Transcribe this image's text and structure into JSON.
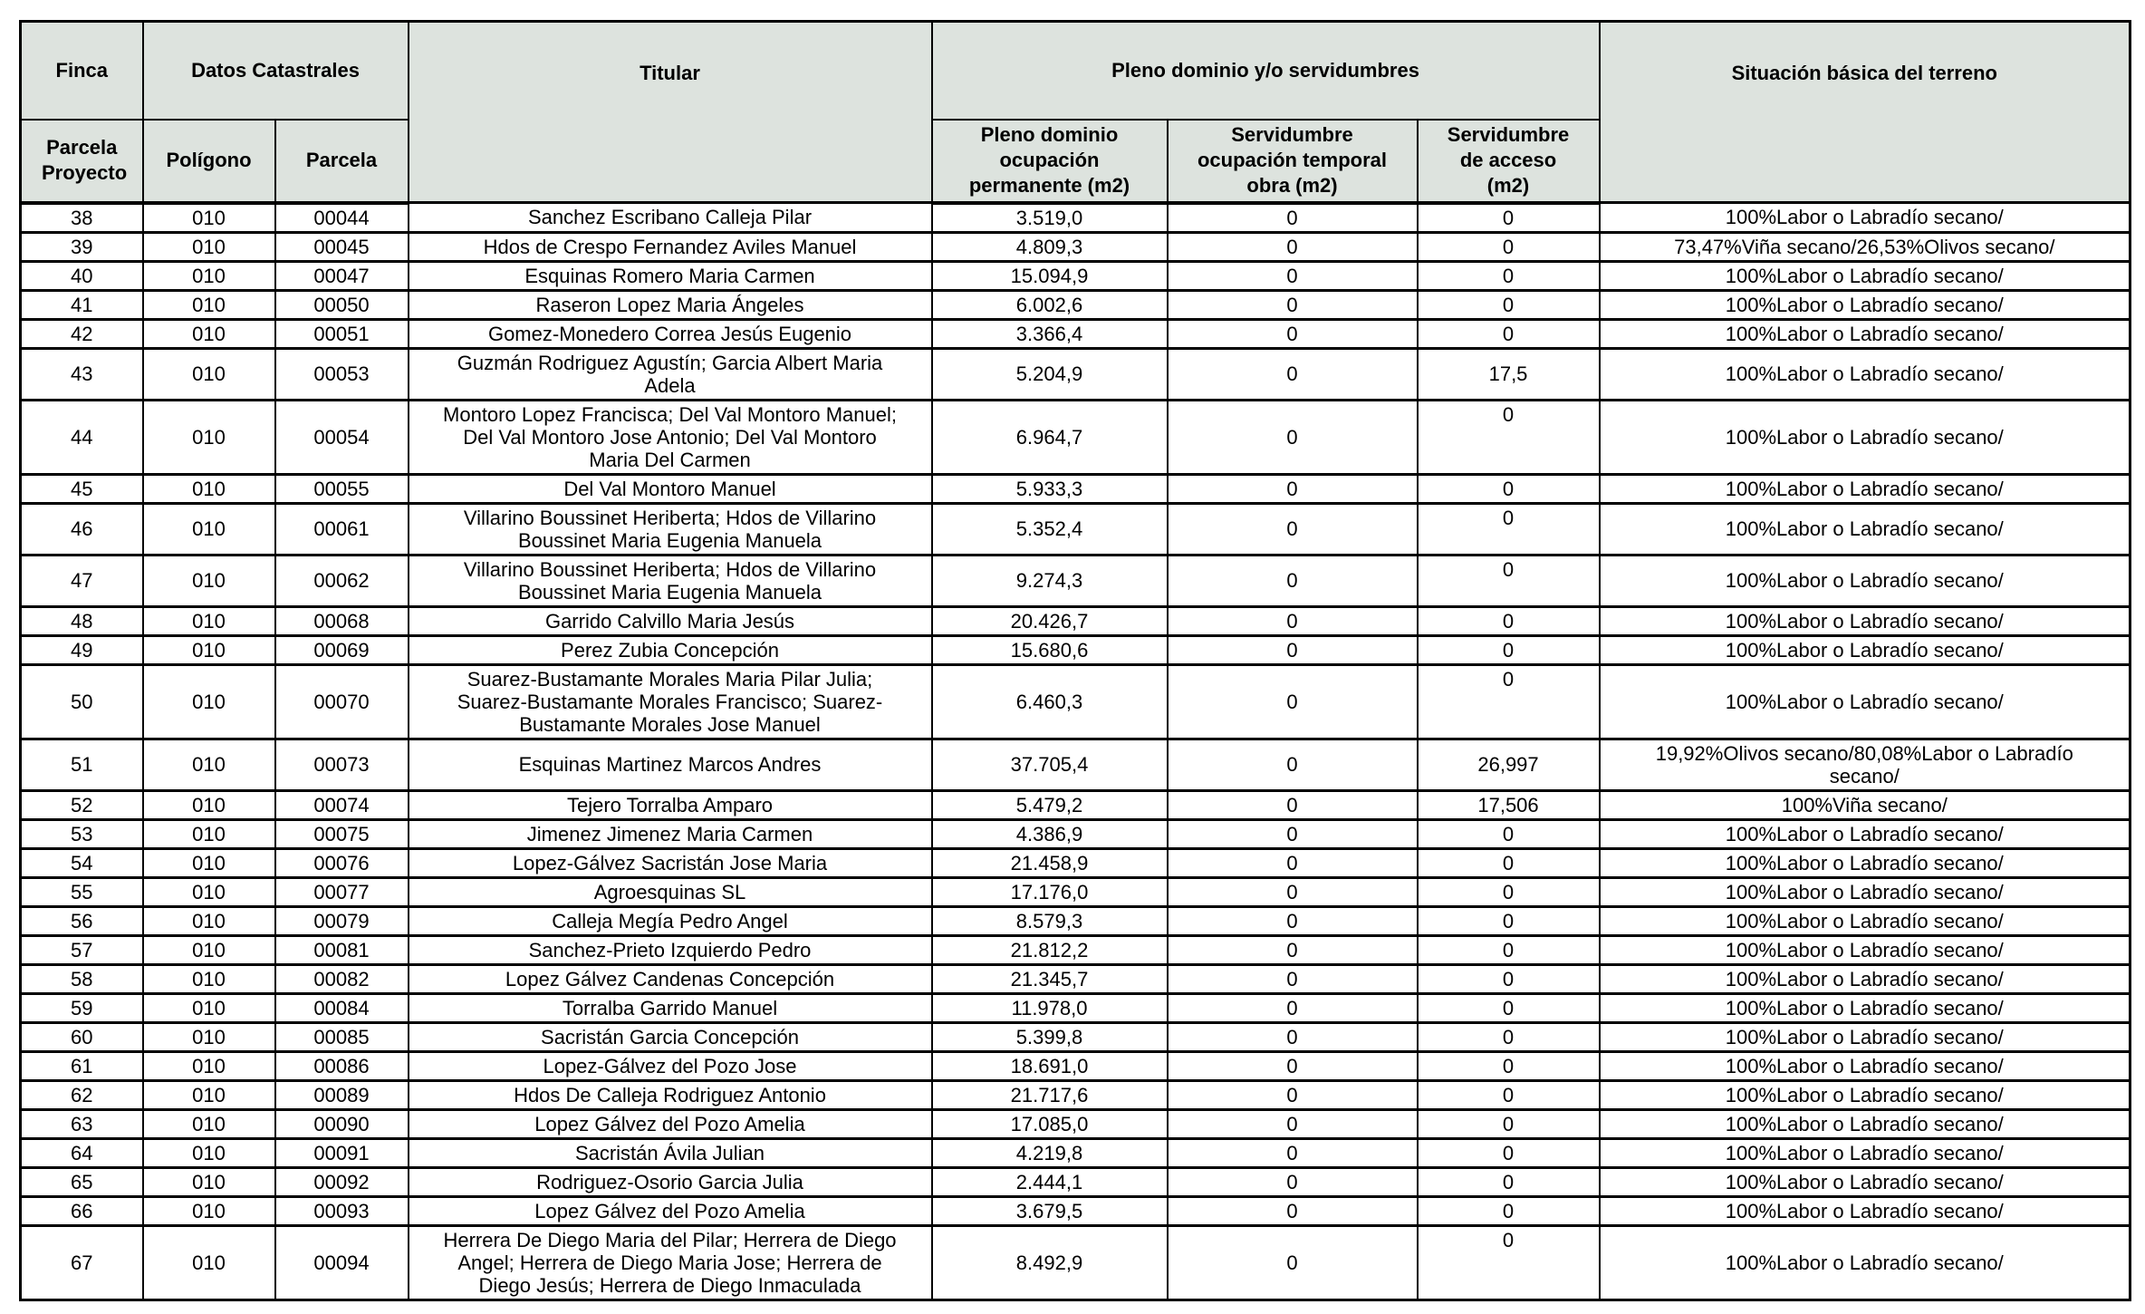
{
  "colors": {
    "header_bg": "#dde3de",
    "border": "#000000"
  },
  "header": {
    "finca": "Finca",
    "parcela_proyecto": "Parcela Proyecto",
    "datos_catastrales": "Datos Catastrales",
    "poligono": "Polígono",
    "parcela": "Parcela",
    "titular": "Titular",
    "pleno_dominio_grupo": "Pleno dominio y/o servidumbres",
    "pleno_dominio": "Pleno dominio ocupación permanente (m2)",
    "serv_temporal": "Servidumbre ocupación temporal obra (m2)",
    "serv_acceso": "Servidumbre de acceso (m2)",
    "situacion": "Situación básica del terreno"
  },
  "rows": [
    {
      "parcela_proyecto": "38",
      "poligono": "010",
      "parcela": "00044",
      "titular": "Sanchez Escribano Calleja Pilar",
      "pleno_dominio": "3.519,0",
      "serv_temporal": "0",
      "serv_acceso": "0",
      "situacion": "100%Labor o Labradío secano/"
    },
    {
      "parcela_proyecto": "39",
      "poligono": "010",
      "parcela": "00045",
      "titular": "Hdos de Crespo Fernandez Aviles Manuel",
      "pleno_dominio": "4.809,3",
      "serv_temporal": "0",
      "serv_acceso": "0",
      "situacion": "73,47%Viña secano/26,53%Olivos secano/"
    },
    {
      "parcela_proyecto": "40",
      "poligono": "010",
      "parcela": "00047",
      "titular": "Esquinas Romero Maria Carmen",
      "pleno_dominio": "15.094,9",
      "serv_temporal": "0",
      "serv_acceso": "0",
      "situacion": "100%Labor o Labradío secano/"
    },
    {
      "parcela_proyecto": "41",
      "poligono": "010",
      "parcela": "00050",
      "titular": "Raseron Lopez Maria Ángeles",
      "pleno_dominio": "6.002,6",
      "serv_temporal": "0",
      "serv_acceso": "0",
      "situacion": "100%Labor o Labradío secano/"
    },
    {
      "parcela_proyecto": "42",
      "poligono": "010",
      "parcela": "00051",
      "titular": "Gomez-Monedero Correa Jesús Eugenio",
      "pleno_dominio": "3.366,4",
      "serv_temporal": "0",
      "serv_acceso": "0",
      "situacion": "100%Labor o Labradío secano/"
    },
    {
      "parcela_proyecto": "43",
      "poligono": "010",
      "parcela": "00053",
      "titular": "Guzmán Rodriguez Agustín; Garcia Albert Maria Adela",
      "pleno_dominio": "5.204,9",
      "serv_temporal": "0",
      "serv_acceso": "17,5",
      "situacion": "100%Labor o Labradío secano/"
    },
    {
      "parcela_proyecto": "44",
      "poligono": "010",
      "parcela": "00054",
      "titular": "Montoro Lopez Francisca; Del Val Montoro Manuel; Del Val Montoro Jose Antonio; Del Val Montoro Maria Del Carmen",
      "pleno_dominio": "6.964,7",
      "serv_temporal": "0",
      "serv_acceso": "0",
      "situacion": "100%Labor o Labradío secano/"
    },
    {
      "parcela_proyecto": "45",
      "poligono": "010",
      "parcela": "00055",
      "titular": "Del Val Montoro Manuel",
      "pleno_dominio": "5.933,3",
      "serv_temporal": "0",
      "serv_acceso": "0",
      "situacion": "100%Labor o Labradío secano/"
    },
    {
      "parcela_proyecto": "46",
      "poligono": "010",
      "parcela": "00061",
      "titular": "Villarino Boussinet Heriberta; Hdos de Villarino Boussinet Maria Eugenia Manuela",
      "pleno_dominio": "5.352,4",
      "serv_temporal": "0",
      "serv_acceso": "0",
      "situacion": "100%Labor o Labradío secano/"
    },
    {
      "parcela_proyecto": "47",
      "poligono": "010",
      "parcela": "00062",
      "titular": "Villarino Boussinet Heriberta; Hdos de Villarino Boussinet Maria Eugenia Manuela",
      "pleno_dominio": "9.274,3",
      "serv_temporal": "0",
      "serv_acceso": "0",
      "situacion": "100%Labor o Labradío secano/"
    },
    {
      "parcela_proyecto": "48",
      "poligono": "010",
      "parcela": "00068",
      "titular": "Garrido Calvillo Maria Jesús",
      "pleno_dominio": "20.426,7",
      "serv_temporal": "0",
      "serv_acceso": "0",
      "situacion": "100%Labor o Labradío secano/"
    },
    {
      "parcela_proyecto": "49",
      "poligono": "010",
      "parcela": "00069",
      "titular": "Perez Zubia Concepción",
      "pleno_dominio": "15.680,6",
      "serv_temporal": "0",
      "serv_acceso": "0",
      "situacion": "100%Labor o Labradío secano/"
    },
    {
      "parcela_proyecto": "50",
      "poligono": "010",
      "parcela": "00070",
      "titular": "Suarez-Bustamante Morales Maria Pilar Julia; Suarez-Bustamante Morales Francisco; Suarez-Bustamante Morales Jose Manuel",
      "pleno_dominio": "6.460,3",
      "serv_temporal": "0",
      "serv_acceso": "0",
      "situacion": "100%Labor o Labradío secano/"
    },
    {
      "parcela_proyecto": "51",
      "poligono": "010",
      "parcela": "00073",
      "titular": "Esquinas Martinez Marcos Andres",
      "pleno_dominio": "37.705,4",
      "serv_temporal": "0",
      "serv_acceso": "26,997",
      "situacion": "19,92%Olivos secano/80,08%Labor o Labradío secano/"
    },
    {
      "parcela_proyecto": "52",
      "poligono": "010",
      "parcela": "00074",
      "titular": "Tejero Torralba Amparo",
      "pleno_dominio": "5.479,2",
      "serv_temporal": "0",
      "serv_acceso": "17,506",
      "situacion": "100%Viña secano/"
    },
    {
      "parcela_proyecto": "53",
      "poligono": "010",
      "parcela": "00075",
      "titular": "Jimenez Jimenez Maria Carmen",
      "pleno_dominio": "4.386,9",
      "serv_temporal": "0",
      "serv_acceso": "0",
      "situacion": "100%Labor o Labradío secano/"
    },
    {
      "parcela_proyecto": "54",
      "poligono": "010",
      "parcela": "00076",
      "titular": "Lopez-Gálvez Sacristán Jose Maria",
      "pleno_dominio": "21.458,9",
      "serv_temporal": "0",
      "serv_acceso": "0",
      "situacion": "100%Labor o Labradío secano/"
    },
    {
      "parcela_proyecto": "55",
      "poligono": "010",
      "parcela": "00077",
      "titular": "Agroesquinas SL",
      "pleno_dominio": "17.176,0",
      "serv_temporal": "0",
      "serv_acceso": "0",
      "situacion": "100%Labor o Labradío secano/"
    },
    {
      "parcela_proyecto": "56",
      "poligono": "010",
      "parcela": "00079",
      "titular": "Calleja Megía Pedro Angel",
      "pleno_dominio": "8.579,3",
      "serv_temporal": "0",
      "serv_acceso": "0",
      "situacion": "100%Labor o Labradío secano/"
    },
    {
      "parcela_proyecto": "57",
      "poligono": "010",
      "parcela": "00081",
      "titular": "Sanchez-Prieto Izquierdo Pedro",
      "pleno_dominio": "21.812,2",
      "serv_temporal": "0",
      "serv_acceso": "0",
      "situacion": "100%Labor o Labradío secano/"
    },
    {
      "parcela_proyecto": "58",
      "poligono": "010",
      "parcela": "00082",
      "titular": "Lopez Gálvez Candenas Concepción",
      "pleno_dominio": "21.345,7",
      "serv_temporal": "0",
      "serv_acceso": "0",
      "situacion": "100%Labor o Labradío secano/"
    },
    {
      "parcela_proyecto": "59",
      "poligono": "010",
      "parcela": "00084",
      "titular": "Torralba Garrido Manuel",
      "pleno_dominio": "11.978,0",
      "serv_temporal": "0",
      "serv_acceso": "0",
      "situacion": "100%Labor o Labradío secano/"
    },
    {
      "parcela_proyecto": "60",
      "poligono": "010",
      "parcela": "00085",
      "titular": "Sacristán Garcia Concepción",
      "pleno_dominio": "5.399,8",
      "serv_temporal": "0",
      "serv_acceso": "0",
      "situacion": "100%Labor o Labradío secano/"
    },
    {
      "parcela_proyecto": "61",
      "poligono": "010",
      "parcela": "00086",
      "titular": "Lopez-Gálvez del Pozo Jose",
      "pleno_dominio": "18.691,0",
      "serv_temporal": "0",
      "serv_acceso": "0",
      "situacion": "100%Labor o Labradío secano/"
    },
    {
      "parcela_proyecto": "62",
      "poligono": "010",
      "parcela": "00089",
      "titular": "Hdos De Calleja Rodriguez Antonio",
      "pleno_dominio": "21.717,6",
      "serv_temporal": "0",
      "serv_acceso": "0",
      "situacion": "100%Labor o Labradío secano/"
    },
    {
      "parcela_proyecto": "63",
      "poligono": "010",
      "parcela": "00090",
      "titular": "Lopez Gálvez del Pozo Amelia",
      "pleno_dominio": "17.085,0",
      "serv_temporal": "0",
      "serv_acceso": "0",
      "situacion": "100%Labor o Labradío secano/"
    },
    {
      "parcela_proyecto": "64",
      "poligono": "010",
      "parcela": "00091",
      "titular": "Sacristán Ávila Julian",
      "pleno_dominio": "4.219,8",
      "serv_temporal": "0",
      "serv_acceso": "0",
      "situacion": "100%Labor o Labradío secano/"
    },
    {
      "parcela_proyecto": "65",
      "poligono": "010",
      "parcela": "00092",
      "titular": "Rodriguez-Osorio Garcia Julia",
      "pleno_dominio": "2.444,1",
      "serv_temporal": "0",
      "serv_acceso": "0",
      "situacion": "100%Labor o Labradío secano/"
    },
    {
      "parcela_proyecto": "66",
      "poligono": "010",
      "parcela": "00093",
      "titular": "Lopez Gálvez del Pozo Amelia",
      "pleno_dominio": "3.679,5",
      "serv_temporal": "0",
      "serv_acceso": "0",
      "situacion": "100%Labor o Labradío secano/"
    },
    {
      "parcela_proyecto": "67",
      "poligono": "010",
      "parcela": "00094",
      "titular": "Herrera De Diego Maria del Pilar; Herrera de Diego Angel; Herrera de Diego Maria Jose; Herrera de Diego Jesús; Herrera de Diego Inmaculada",
      "pleno_dominio": "8.492,9",
      "serv_temporal": "0",
      "serv_acceso": "0",
      "situacion": "100%Labor o Labradío secano/"
    }
  ]
}
